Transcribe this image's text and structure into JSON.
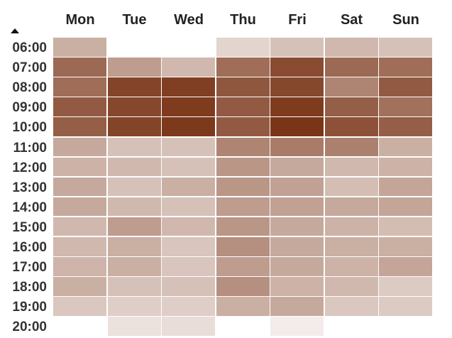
{
  "chart_data": {
    "type": "heatmap",
    "title": "",
    "xlabel": "",
    "ylabel": "",
    "x": [
      "Mon",
      "Tue",
      "Wed",
      "Thu",
      "Fri",
      "Sat",
      "Sun"
    ],
    "y": [
      "06:00",
      "07:00",
      "08:00",
      "09:00",
      "10:00",
      "11:00",
      "12:00",
      "13:00",
      "14:00",
      "15:00",
      "16:00",
      "17:00",
      "18:00",
      "19:00",
      "20:00"
    ],
    "values": [
      [
        0.35,
        null,
        null,
        0.15,
        0.25,
        0.3,
        0.25
      ],
      [
        0.72,
        0.45,
        0.3,
        0.7,
        0.88,
        0.72,
        0.7
      ],
      [
        0.7,
        0.92,
        0.95,
        0.82,
        0.9,
        0.58,
        0.8
      ],
      [
        0.8,
        0.9,
        0.97,
        0.8,
        0.97,
        0.78,
        0.68
      ],
      [
        0.78,
        0.92,
        0.98,
        0.8,
        1.0,
        0.85,
        0.78
      ],
      [
        0.38,
        0.25,
        0.25,
        0.58,
        0.62,
        0.6,
        0.35
      ],
      [
        0.33,
        0.3,
        0.25,
        0.48,
        0.38,
        0.3,
        0.33
      ],
      [
        0.38,
        0.25,
        0.35,
        0.48,
        0.42,
        0.27,
        0.4
      ],
      [
        0.38,
        0.3,
        0.25,
        0.45,
        0.42,
        0.38,
        0.4
      ],
      [
        0.3,
        0.45,
        0.3,
        0.48,
        0.38,
        0.33,
        0.28
      ],
      [
        0.3,
        0.35,
        0.23,
        0.52,
        0.38,
        0.35,
        0.35
      ],
      [
        0.32,
        0.35,
        0.23,
        0.45,
        0.38,
        0.33,
        0.4
      ],
      [
        0.35,
        0.25,
        0.25,
        0.52,
        0.33,
        0.3,
        0.2
      ],
      [
        0.22,
        0.18,
        0.18,
        0.35,
        0.38,
        0.22,
        0.2
      ],
      [
        null,
        0.08,
        0.1,
        null,
        0.02,
        null,
        null
      ]
    ],
    "color_low": "#f5f0ee",
    "color_high": "#7a3518",
    "sort_indicator": "ascending",
    "grid": false,
    "legend": "none"
  }
}
